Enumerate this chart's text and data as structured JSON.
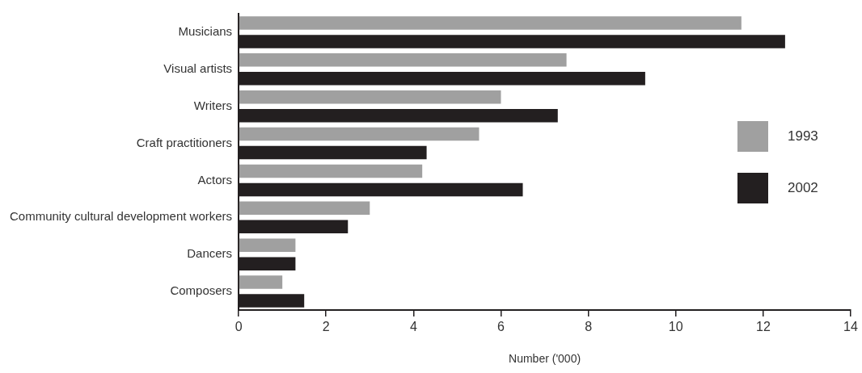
{
  "chart_data": {
    "type": "bar",
    "orientation": "horizontal",
    "xlabel": "Number ('000)",
    "categories": [
      "Musicians",
      "Visual artists",
      "Writers",
      "Craft practitioners",
      "Actors",
      "Community cultural development workers",
      "Dancers",
      "Composers"
    ],
    "series": [
      {
        "name": "1993",
        "color": "#a0a0a0",
        "values": [
          11.5,
          7.5,
          6.0,
          5.5,
          4.2,
          3.0,
          1.3,
          1.0
        ]
      },
      {
        "name": "2002",
        "color": "#231f20",
        "values": [
          12.5,
          9.3,
          7.3,
          4.3,
          6.5,
          2.5,
          1.3,
          1.5
        ]
      }
    ],
    "xlim": [
      0,
      14
    ],
    "xticks": [
      0,
      2,
      4,
      6,
      8,
      10,
      12,
      14
    ],
    "grid": false,
    "legend": "right"
  }
}
